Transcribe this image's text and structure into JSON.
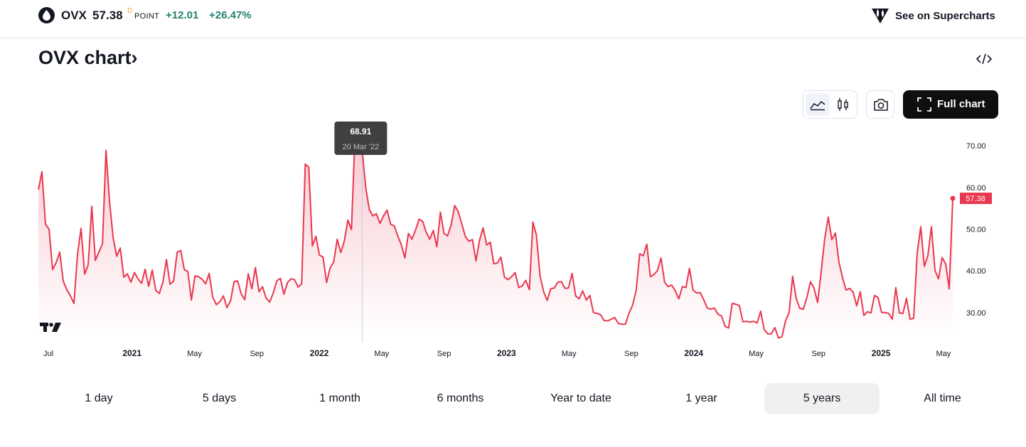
{
  "header": {
    "symbol": "OVX",
    "price": "57.38",
    "price_flag": "D",
    "unit": "POINT",
    "change": "+12.01",
    "change_percent": "+26.47%",
    "supercharts_label": "See on Supercharts",
    "logo_icon": "oil-drop-icon",
    "supercharts_icon": "tradingview-candles-icon"
  },
  "title": "OVX chart",
  "title_suffix": "›",
  "toolbar": {
    "area_icon": "area-chart-icon",
    "candle_icon": "candles-icon",
    "snapshot_icon": "camera-icon",
    "full_chart_label": "Full chart",
    "full_chart_icon": "fullscreen-icon",
    "embed_icon": "code-icon"
  },
  "tooltip": {
    "value": "68.91",
    "date": "20 Mar '22"
  },
  "last_label": "57.38",
  "colors": {
    "line": "#e8384f",
    "fill_top": "#f7c3cb",
    "accent_green": "#22826e",
    "dark": "#131722"
  },
  "ranges": [
    {
      "label": "1 day",
      "active": false
    },
    {
      "label": "5 days",
      "active": false
    },
    {
      "label": "1 month",
      "active": false
    },
    {
      "label": "6 months",
      "active": false
    },
    {
      "label": "Year to date",
      "active": false
    },
    {
      "label": "1 year",
      "active": false
    },
    {
      "label": "5 years",
      "active": true
    },
    {
      "label": "All time",
      "active": false
    }
  ],
  "chart_data": {
    "type": "area",
    "title": "OVX",
    "ylim": [
      24,
      76
    ],
    "y_ticks": [
      "70.00",
      "60.00",
      "50.00",
      "40.00",
      "30.00"
    ],
    "x_ticks": [
      "Jul",
      "2021",
      "May",
      "Sep",
      "2022",
      "May",
      "Sep",
      "2023",
      "May",
      "Sep",
      "2024",
      "May",
      "Sep",
      "2025",
      "May"
    ],
    "x_tick_positions": [
      0,
      6,
      10,
      14,
      18,
      22,
      26,
      30,
      34,
      38,
      42,
      46,
      50,
      54,
      58
    ],
    "x_tick_bold": [
      false,
      true,
      false,
      false,
      true,
      false,
      false,
      true,
      false,
      false,
      true,
      false,
      false,
      true,
      false
    ],
    "x_start": "2020-07",
    "x_end": "2025-05",
    "grid": false,
    "legend": "none",
    "highlight": {
      "date": "2022-03-20",
      "value": 68.91
    },
    "values": [
      59.5,
      63.8,
      51.2,
      50.0,
      40.3,
      42.0,
      44.5,
      37.5,
      35.5,
      34.0,
      32.2,
      44.0,
      50.2,
      39.2,
      41.5,
      55.5,
      42.5,
      44.5,
      46.5,
      68.9,
      56.5,
      48.0,
      43.5,
      45.5,
      38.5,
      39.3,
      37.3,
      39.6,
      38.1,
      37.0,
      40.4,
      36.3,
      40.2,
      35.3,
      34.6,
      37.3,
      42.7,
      36.8,
      37.5,
      44.5,
      44.9,
      40.3,
      39.8,
      33.0,
      38.8,
      38.6,
      38.0,
      36.9,
      39.4,
      33.7,
      31.9,
      32.6,
      34.0,
      31.2,
      32.8,
      37.4,
      37.6,
      34.5,
      33.1,
      39.3,
      35.7,
      40.8,
      35.0,
      36.2,
      33.5,
      32.5,
      34.7,
      37.6,
      38.2,
      34.4,
      37.2,
      38.1,
      37.9,
      36.1,
      36.9,
      65.6,
      64.9,
      46.0,
      48.3,
      43.8,
      43.3,
      37.2,
      40.7,
      42.1,
      47.6,
      44.4,
      47.2,
      52.2,
      49.9,
      72.5,
      68.1,
      68.9,
      60.0,
      54.7,
      53.2,
      53.7,
      51.4,
      53.2,
      54.6,
      51.2,
      50.8,
      48.4,
      46.3,
      43.1,
      49.0,
      47.6,
      49.8,
      52.4,
      51.9,
      49.3,
      47.6,
      49.7,
      45.8,
      54.1,
      49.0,
      48.4,
      51.0,
      55.7,
      54.2,
      51.3,
      48.2,
      47.1,
      47.5,
      42.4,
      47.4,
      50.3,
      46.2,
      46.9,
      41.7,
      41.9,
      43.3,
      38.5,
      37.9,
      38.6,
      39.6,
      36.0,
      36.4,
      37.7,
      35.5,
      51.7,
      48.5,
      38.8,
      35.0,
      32.9,
      35.7,
      35.9,
      37.3,
      37.4,
      35.8,
      35.9,
      39.4,
      34.0,
      33.3,
      35.2,
      33.0,
      34.1,
      30.0,
      29.8,
      29.5,
      28.1,
      28.0,
      28.4,
      28.8,
      27.4,
      27.2,
      27.2,
      29.8,
      31.7,
      35.3,
      44.1,
      43.6,
      46.4,
      38.6,
      39.1,
      40.1,
      43.1,
      37.3,
      36.2,
      36.6,
      35.2,
      33.3,
      36.2,
      36.0,
      40.6,
      35.4,
      34.7,
      34.8,
      33.1,
      31.1,
      30.8,
      31.1,
      29.6,
      29.2,
      26.7,
      26.3,
      32.2,
      32.0,
      31.7,
      27.8,
      27.9,
      27.7,
      27.9,
      27.5,
      30.3,
      25.9,
      24.9,
      24.9,
      26.4,
      23.9,
      24.2,
      28.0,
      30.0,
      38.7,
      33.4,
      31.0,
      30.8,
      33.6,
      37.4,
      35.9,
      32.4,
      39.7,
      47.7,
      52.9,
      47.5,
      49.1,
      42.1,
      38.4,
      35.4,
      35.8,
      34.9,
      31.6,
      35.0,
      29.3,
      30.2,
      29.9,
      34.1,
      33.6,
      30.0,
      30.0,
      29.8,
      28.4,
      36.0,
      29.9,
      29.8,
      33.4,
      28.4,
      28.6,
      44.3,
      50.6,
      41.1,
      43.7,
      50.6,
      40.1,
      38.1,
      43.2,
      41.7,
      35.7,
      57.4
    ]
  }
}
